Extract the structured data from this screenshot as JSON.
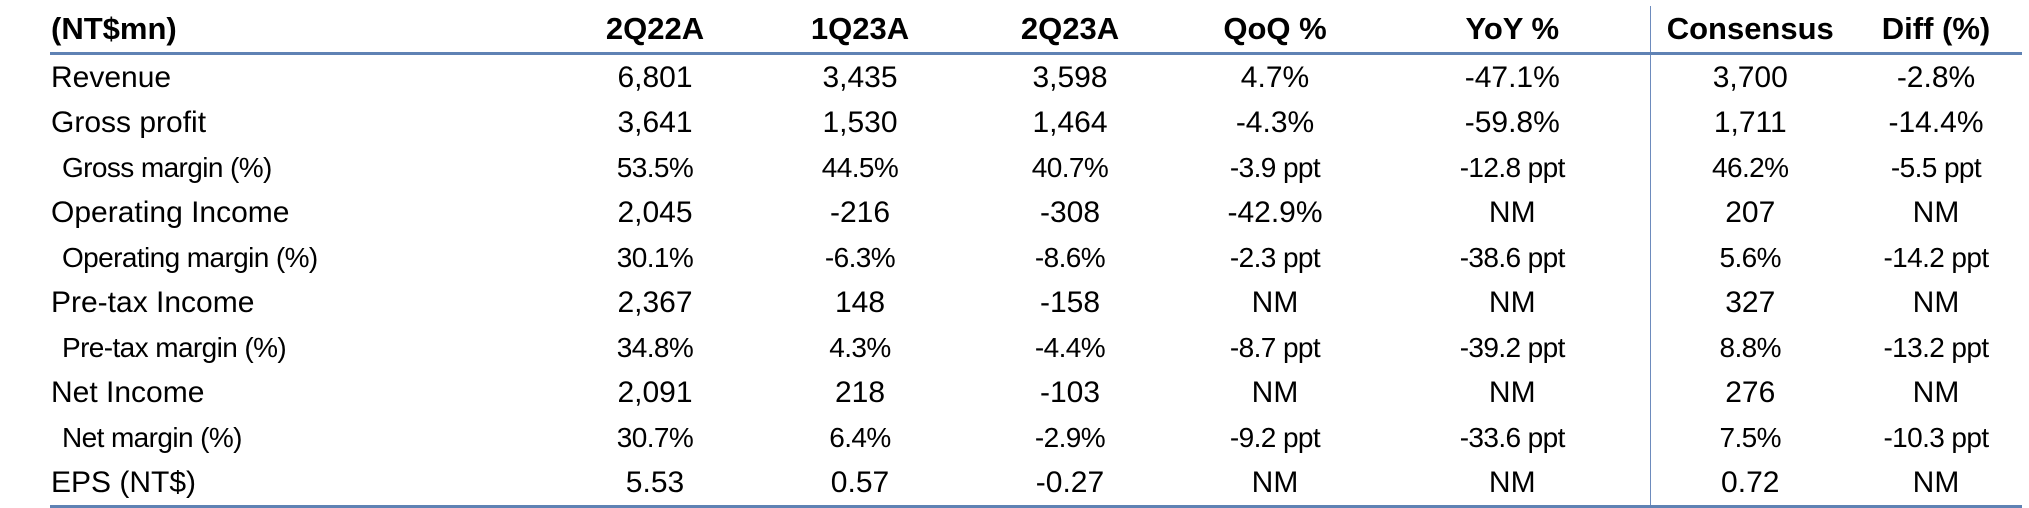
{
  "table": {
    "headers": [
      "(NT$mn)",
      "2Q22A",
      "1Q23A",
      "2Q23A",
      "QoQ %",
      "YoY %",
      "Consensus",
      "Diff (%)"
    ],
    "rows": [
      {
        "label": "Revenue",
        "values": [
          "6,801",
          "3,435",
          "3,598",
          "4.7%",
          "-47.1%",
          "3,700",
          "-2.8%"
        ],
        "sub": false
      },
      {
        "label": "Gross profit",
        "values": [
          "3,641",
          "1,530",
          "1,464",
          "-4.3%",
          "-59.8%",
          "1,711",
          "-14.4%"
        ],
        "sub": false
      },
      {
        "label": "Gross margin (%)",
        "values": [
          "53.5%",
          "44.5%",
          "40.7%",
          "-3.9 ppt",
          "-12.8 ppt",
          "46.2%",
          "-5.5 ppt"
        ],
        "sub": true
      },
      {
        "label": "Operating Income",
        "values": [
          "2,045",
          "-216",
          "-308",
          "-42.9%",
          "NM",
          "207",
          "NM"
        ],
        "sub": false
      },
      {
        "label": "Operating margin (%)",
        "values": [
          "30.1%",
          "-6.3%",
          "-8.6%",
          "-2.3 ppt",
          "-38.6 ppt",
          "5.6%",
          "-14.2 ppt"
        ],
        "sub": true
      },
      {
        "label": "Pre-tax Income",
        "values": [
          "2,367",
          "148",
          "-158",
          "NM",
          "NM",
          "327",
          "NM"
        ],
        "sub": false
      },
      {
        "label": "Pre-tax margin (%)",
        "values": [
          "34.8%",
          "4.3%",
          "-4.4%",
          "-8.7 ppt",
          "-39.2 ppt",
          "8.8%",
          "-13.2 ppt"
        ],
        "sub": true
      },
      {
        "label": "Net Income",
        "values": [
          "2,091",
          "218",
          "-103",
          "NM",
          "NM",
          "276",
          "NM"
        ],
        "sub": false
      },
      {
        "label": "Net margin (%)",
        "values": [
          "30.7%",
          "6.4%",
          "-2.9%",
          "-9.2 ppt",
          "-33.6 ppt",
          "7.5%",
          "-10.3 ppt"
        ],
        "sub": true
      },
      {
        "label": "EPS (NT$)",
        "values": [
          "5.53",
          "0.57",
          "-0.27",
          "NM",
          "NM",
          "0.72",
          "NM"
        ],
        "sub": false
      }
    ]
  },
  "colors": {
    "rule": "#5f82b4",
    "separator": "#6d8bbd"
  }
}
